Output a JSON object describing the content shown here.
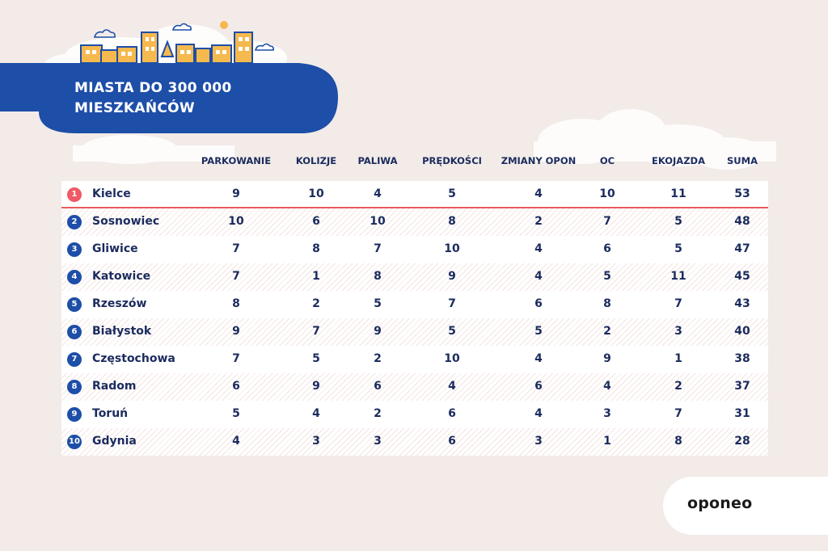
{
  "title": {
    "line1": "MIASTA DO 300 000",
    "line2": "MIESZKAŃCÓW"
  },
  "columns": [
    "PARKOWANIE",
    "KOLIZJE",
    "PALIWA",
    "PRĘDKOŚCI",
    "ZMIANY OPON",
    "OC",
    "EKOJAZDA",
    "SUMA"
  ],
  "rows": [
    {
      "rank": "1",
      "city": "Kielce",
      "values": [
        "9",
        "10",
        "4",
        "5",
        "4",
        "10",
        "11",
        "53"
      ]
    },
    {
      "rank": "2",
      "city": "Sosnowiec",
      "values": [
        "10",
        "6",
        "10",
        "8",
        "2",
        "7",
        "5",
        "48"
      ]
    },
    {
      "rank": "3",
      "city": "Gliwice",
      "values": [
        "7",
        "8",
        "7",
        "10",
        "4",
        "6",
        "5",
        "47"
      ]
    },
    {
      "rank": "4",
      "city": "Katowice",
      "values": [
        "7",
        "1",
        "8",
        "9",
        "4",
        "5",
        "11",
        "45"
      ]
    },
    {
      "rank": "5",
      "city": "Rzeszów",
      "values": [
        "8",
        "2",
        "5",
        "7",
        "6",
        "8",
        "7",
        "43"
      ]
    },
    {
      "rank": "6",
      "city": "Białystok",
      "values": [
        "9",
        "7",
        "9",
        "5",
        "5",
        "2",
        "3",
        "40"
      ]
    },
    {
      "rank": "7",
      "city": "Częstochowa",
      "values": [
        "7",
        "5",
        "2",
        "10",
        "4",
        "9",
        "1",
        "38"
      ]
    },
    {
      "rank": "8",
      "city": "Radom",
      "values": [
        "6",
        "9",
        "6",
        "4",
        "6",
        "4",
        "2",
        "37"
      ]
    },
    {
      "rank": "9",
      "city": "Toruń",
      "values": [
        "5",
        "4",
        "2",
        "6",
        "4",
        "3",
        "7",
        "31"
      ]
    },
    {
      "rank": "10",
      "city": "Gdynia",
      "values": [
        "4",
        "3",
        "3",
        "6",
        "3",
        "1",
        "8",
        "28"
      ]
    }
  ],
  "logo": "oponeo",
  "colors": {
    "banner": "#1d4ea8",
    "text": "#1b2b5e",
    "highlight": "#ef5a64",
    "background": "#f2ebe8"
  },
  "icons": [
    "city-skyline-illustration",
    "cloud-icon",
    "sun-icon"
  ]
}
